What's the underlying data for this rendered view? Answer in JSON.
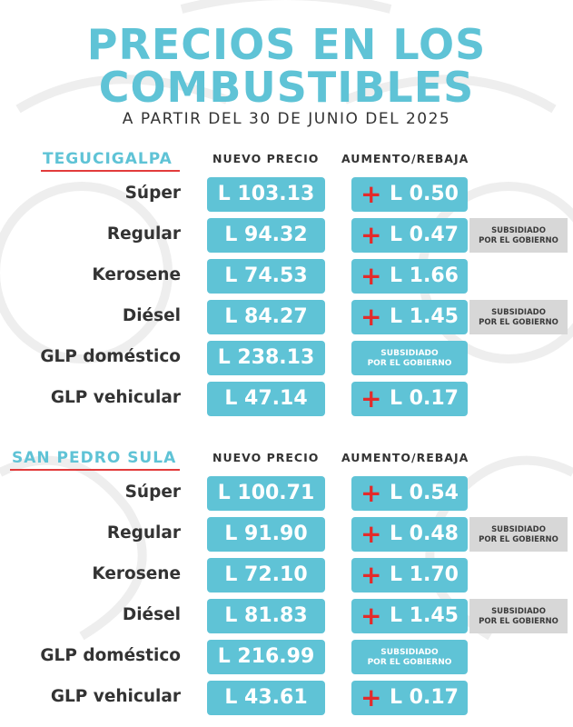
{
  "header": {
    "title_line1": "PRECIOS EN LOS",
    "title_line2": "COMBUSTIBLES",
    "subtitle": "A PARTIR DEL 30 DE JUNIO DEL 2025"
  },
  "colors": {
    "accent": "#5fc3d6",
    "plus": "#e32b2b",
    "underline": "#e23b3b",
    "note_bg": "#d7d7d7"
  },
  "sections": [
    {
      "city": "TEGUCIGALPA",
      "col_price": "NUEVO PRECIO",
      "col_change": "AUMENTO/REBAJA",
      "rows": [
        {
          "fuel": "Súper",
          "price": "L 103.13",
          "sign": "+",
          "change": "L 0.50",
          "note": ""
        },
        {
          "fuel": "Regular",
          "price": "L 94.32",
          "sign": "+",
          "change": "L 0.47",
          "note_l1": "SUBSIDIADO",
          "note_l2": "POR EL GOBIERNO"
        },
        {
          "fuel": "Kerosene",
          "price": "L 74.53",
          "sign": "+",
          "change": "L 1.66",
          "note": ""
        },
        {
          "fuel": "Diésel",
          "price": "L 84.27",
          "sign": "+",
          "change": "L 1.45",
          "note_l1": "SUBSIDIADO",
          "note_l2": "POR EL GOBIERNO"
        },
        {
          "fuel": "GLP doméstico",
          "price": "L 238.13",
          "sub_l1": "SUBSIDIADO",
          "sub_l2": "POR EL GOBIERNO"
        },
        {
          "fuel": "GLP vehicular",
          "price": "L 47.14",
          "sign": "+",
          "change": "L 0.17",
          "note": ""
        }
      ]
    },
    {
      "city": "SAN PEDRO SULA",
      "col_price": "NUEVO PRECIO",
      "col_change": "AUMENTO/REBAJA",
      "rows": [
        {
          "fuel": "Súper",
          "price": "L 100.71",
          "sign": "+",
          "change": "L 0.54",
          "note": ""
        },
        {
          "fuel": "Regular",
          "price": "L 91.90",
          "sign": "+",
          "change": "L 0.48",
          "note_l1": "SUBSIDIADO",
          "note_l2": "POR EL GOBIERNO"
        },
        {
          "fuel": "Kerosene",
          "price": "L 72.10",
          "sign": "+",
          "change": "L 1.70",
          "note": ""
        },
        {
          "fuel": "Diésel",
          "price": "L 81.83",
          "sign": "+",
          "change": "L 1.45",
          "note_l1": "SUBSIDIADO",
          "note_l2": "POR EL GOBIERNO"
        },
        {
          "fuel": "GLP doméstico",
          "price": "L 216.99",
          "sub_l1": "SUBSIDIADO",
          "sub_l2": "POR EL GOBIERNO"
        },
        {
          "fuel": "GLP vehicular",
          "price": "L 43.61",
          "sign": "+",
          "change": "L 0.17",
          "note": ""
        }
      ]
    }
  ]
}
